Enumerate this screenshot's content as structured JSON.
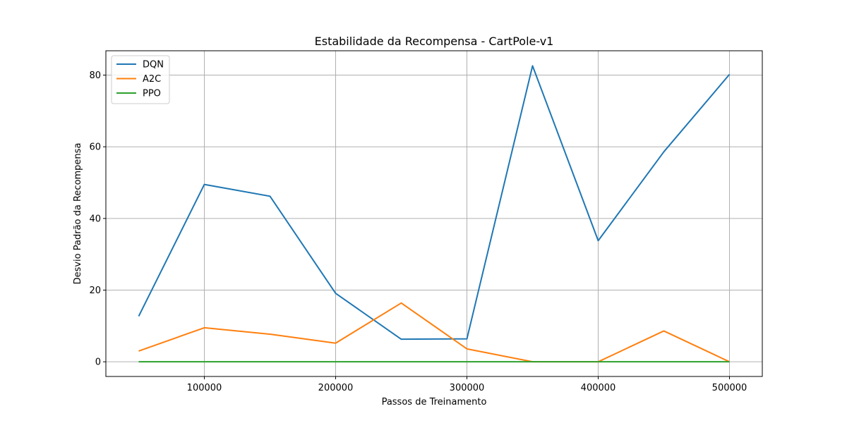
{
  "chart_data": {
    "type": "line",
    "title": "Estabilidade da Recompensa - CartPole-v1",
    "xlabel": "Passos de Treinamento",
    "ylabel": "Desvio Padrão da Recompensa",
    "x": [
      50000,
      100000,
      150000,
      200000,
      250000,
      300000,
      350000,
      400000,
      450000,
      500000
    ],
    "xlim": [
      25000,
      525000
    ],
    "ylim": [
      -4.1,
      86.8
    ],
    "x_ticks": [
      100000,
      200000,
      300000,
      400000,
      500000
    ],
    "x_tick_labels": [
      "100000",
      "200000",
      "300000",
      "400000",
      "500000"
    ],
    "y_ticks": [
      0,
      20,
      40,
      60,
      80
    ],
    "y_tick_labels": [
      "0",
      "20",
      "40",
      "60",
      "80"
    ],
    "grid": true,
    "legend_position": "top-left",
    "series": [
      {
        "name": "DQN",
        "color": "#1f77b4",
        "values": [
          12.7,
          49.5,
          46.2,
          19.1,
          6.3,
          6.4,
          82.6,
          33.8,
          58.6,
          80.2
        ]
      },
      {
        "name": "A2C",
        "color": "#ff7f0e",
        "values": [
          3.0,
          9.5,
          7.7,
          5.2,
          16.4,
          3.6,
          0.0,
          0.0,
          8.6,
          0.0
        ]
      },
      {
        "name": "PPO",
        "color": "#2ca02c",
        "values": [
          0,
          0,
          0,
          0,
          0,
          0,
          0,
          0,
          0,
          0
        ]
      }
    ]
  }
}
